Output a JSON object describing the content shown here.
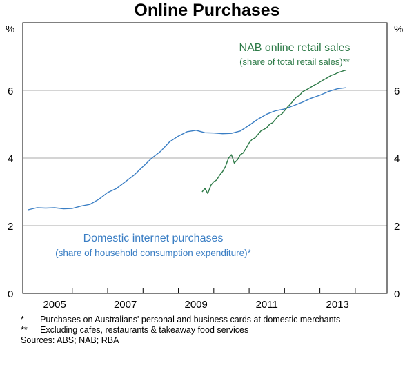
{
  "chart_data": {
    "type": "line",
    "title": "Online Purchases",
    "y_unit_left": "%",
    "y_unit_right": "%",
    "ylim": [
      0,
      8
    ],
    "yticks": [
      0,
      2,
      4,
      6
    ],
    "xlim": [
      2004.6,
      2014.9
    ],
    "xticks": [
      "2005",
      "2007",
      "2009",
      "2011",
      "2013"
    ],
    "grid": true,
    "series": [
      {
        "name": "Domestic internet purchases",
        "label_line1": "Domestic internet purchases",
        "label_line2": "(share of household consumption expenditure)*",
        "color": "#3a7ec4",
        "x": [
          2004.75,
          2005.0,
          2005.25,
          2005.5,
          2005.75,
          2006.0,
          2006.25,
          2006.5,
          2006.75,
          2007.0,
          2007.25,
          2007.5,
          2007.75,
          2008.0,
          2008.25,
          2008.5,
          2008.75,
          2009.0,
          2009.25,
          2009.5,
          2009.75,
          2010.0,
          2010.25,
          2010.5,
          2010.75,
          2011.0,
          2011.25,
          2011.5,
          2011.75,
          2012.0,
          2012.25,
          2012.5,
          2012.75,
          2013.0,
          2013.25,
          2013.5,
          2013.75
        ],
        "values": [
          2.47,
          2.53,
          2.52,
          2.53,
          2.5,
          2.51,
          2.58,
          2.63,
          2.78,
          2.98,
          3.1,
          3.3,
          3.5,
          3.75,
          4.0,
          4.2,
          4.48,
          4.65,
          4.78,
          4.82,
          4.75,
          4.74,
          4.72,
          4.73,
          4.8,
          4.97,
          5.15,
          5.3,
          5.4,
          5.45,
          5.55,
          5.65,
          5.77,
          5.86,
          5.97,
          6.05,
          6.08
        ]
      },
      {
        "name": "NAB online retail sales",
        "label_line1": "NAB online retail sales",
        "label_line2": "(share of total retail sales)**",
        "color": "#2d7a47",
        "x": [
          2009.67,
          2009.75,
          2009.83,
          2009.92,
          2010.0,
          2010.08,
          2010.17,
          2010.25,
          2010.33,
          2010.42,
          2010.5,
          2010.58,
          2010.67,
          2010.75,
          2010.83,
          2010.92,
          2011.0,
          2011.08,
          2011.17,
          2011.25,
          2011.33,
          2011.42,
          2011.5,
          2011.58,
          2011.67,
          2011.75,
          2011.83,
          2011.92,
          2012.0,
          2012.08,
          2012.17,
          2012.25,
          2012.33,
          2012.42,
          2012.5,
          2012.58,
          2012.67,
          2012.75,
          2012.83,
          2012.92,
          2013.0,
          2013.08,
          2013.17,
          2013.25,
          2013.33,
          2013.42,
          2013.5,
          2013.58,
          2013.67,
          2013.75
        ],
        "values": [
          3.0,
          3.1,
          2.95,
          3.2,
          3.3,
          3.35,
          3.5,
          3.6,
          3.75,
          4.0,
          4.1,
          3.85,
          3.95,
          4.1,
          4.15,
          4.3,
          4.45,
          4.55,
          4.6,
          4.7,
          4.8,
          4.85,
          4.9,
          5.0,
          5.05,
          5.15,
          5.25,
          5.3,
          5.4,
          5.5,
          5.6,
          5.7,
          5.8,
          5.85,
          5.95,
          6.0,
          6.05,
          6.1,
          6.15,
          6.2,
          6.25,
          6.3,
          6.35,
          6.4,
          6.45,
          6.48,
          6.52,
          6.55,
          6.58,
          6.6
        ]
      }
    ]
  },
  "footnotes": [
    {
      "mark": "*",
      "text": "Purchases on Australians' personal and business cards at domestic merchants"
    },
    {
      "mark": "**",
      "text": "Excluding cafes, restaurants & takeaway food services"
    }
  ],
  "sources": "Sources: ABS; NAB; RBA"
}
